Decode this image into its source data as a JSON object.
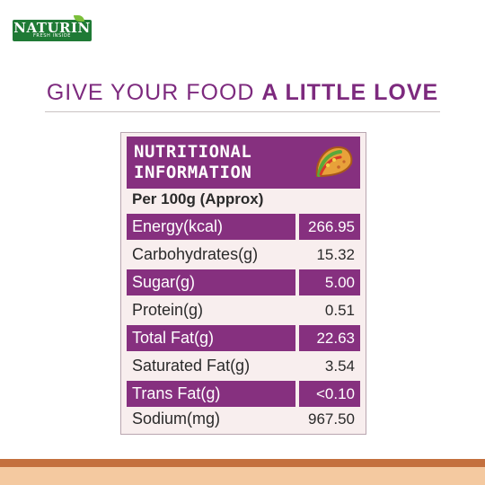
{
  "logo": {
    "word": "NATURIN",
    "tagline": "FRESH INSIDE"
  },
  "headline": {
    "regular": "GIVE YOUR FOOD ",
    "bold": "A LITTLE LOVE"
  },
  "card": {
    "title_line1": "NUTRITIONAL",
    "title_line2": "INFORMATION",
    "icon": "taco-icon",
    "per": "Per 100g (Approx)",
    "rows": [
      {
        "label": "Energy(kcal)",
        "value": "266.95"
      },
      {
        "label": "Carbohydrates(g)",
        "value": "15.32"
      },
      {
        "label": "Sugar(g)",
        "value": "5.00"
      },
      {
        "label": "Protein(g)",
        "value": "0.51"
      },
      {
        "label": "Total Fat(g)",
        "value": "22.63"
      },
      {
        "label": "Saturated Fat(g)",
        "value": "3.54"
      },
      {
        "label": "Trans Fat(g)",
        "value": "<0.10"
      },
      {
        "label": "Sodium(mg)",
        "value": "967.50"
      }
    ]
  },
  "colors": {
    "accent": "#86307f",
    "brand_green": "#1f7a35",
    "card_bg": "#f8eeee"
  }
}
